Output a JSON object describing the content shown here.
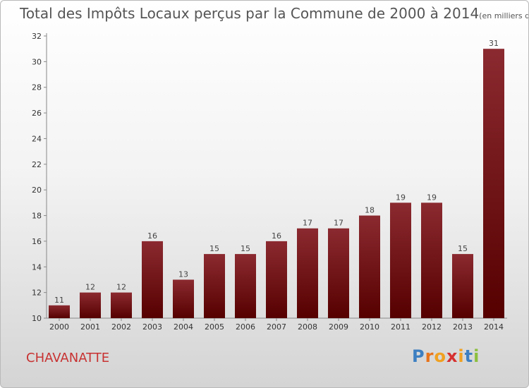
{
  "title": "Total des Impôts Locaux perçus par la Commune de 2000 à 2014",
  "title_unit": "(en milliers d'€)",
  "commune_name": "CHAVANATTE",
  "logo_text": "Proxiti",
  "colors": {
    "bar_top": "#8b2a30",
    "bar_bottom": "#560000",
    "commune": "#c83232"
  },
  "chart_data": {
    "type": "bar",
    "title": "Total des Impôts Locaux perçus par la Commune de 2000 à 2014",
    "categories": [
      "2000",
      "2001",
      "2002",
      "2003",
      "2004",
      "2005",
      "2006",
      "2007",
      "2008",
      "2009",
      "2010",
      "2011",
      "2012",
      "2013",
      "2014"
    ],
    "values": [
      11,
      12,
      12,
      16,
      13,
      15,
      15,
      16,
      17,
      17,
      18,
      19,
      19,
      15,
      31
    ],
    "ylim": [
      10,
      32
    ],
    "yticks": [
      10,
      12,
      14,
      16,
      18,
      20,
      22,
      24,
      26,
      28,
      30,
      32
    ],
    "grid": false,
    "legend": "none",
    "xlabel": "",
    "ylabel": ""
  }
}
